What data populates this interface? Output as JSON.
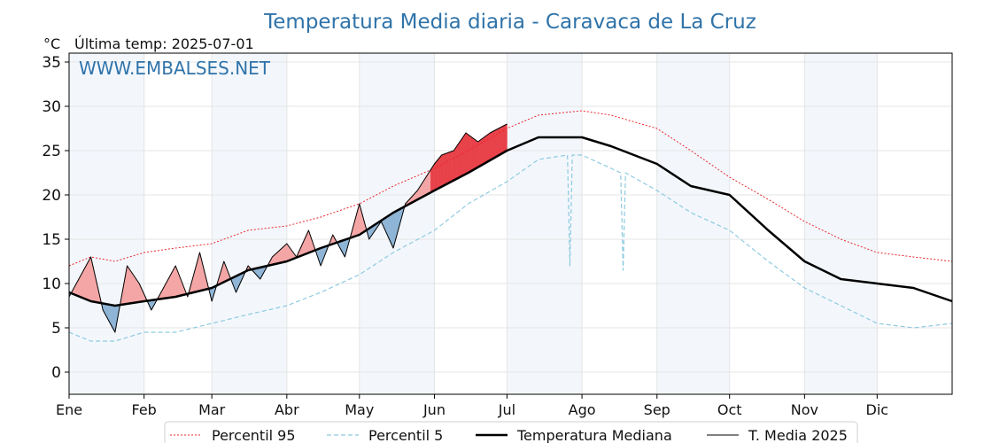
{
  "chart_data": {
    "type": "line",
    "title": "Temperatura Media diaria - Caravaca de La Cruz",
    "unit_label": "°C",
    "subtitle": "Última temp: 2025-07-01",
    "watermark": "WWW.EMBALSES.NET",
    "ylim": [
      -2.5,
      36
    ],
    "yticks": [
      0,
      5,
      10,
      15,
      20,
      25,
      30,
      35
    ],
    "xlim": [
      1,
      366
    ],
    "months": [
      "Ene",
      "Feb",
      "Mar",
      "Abr",
      "May",
      "Jun",
      "Jul",
      "Ago",
      "Sep",
      "Oct",
      "Nov",
      "Dic"
    ],
    "month_start_days": [
      1,
      32,
      60,
      91,
      121,
      152,
      182,
      213,
      244,
      274,
      305,
      335
    ],
    "grid": true,
    "legend_position": "bottom",
    "series": [
      {
        "name": "Percentil 95",
        "color": "#e8282d",
        "style": "dotted",
        "x": [
          1,
          10,
          20,
          32,
          45,
          60,
          75,
          91,
          105,
          121,
          135,
          152,
          166,
          182,
          195,
          213,
          225,
          244,
          258,
          274,
          290,
          305,
          320,
          335,
          350,
          366
        ],
        "values": [
          12.0,
          13.0,
          12.5,
          13.5,
          14.0,
          14.5,
          16.0,
          16.5,
          17.5,
          19.0,
          21.0,
          23.0,
          25.0,
          27.5,
          29.0,
          29.5,
          29.0,
          27.5,
          25.0,
          22.0,
          19.5,
          17.0,
          15.0,
          13.5,
          13.0,
          12.5
        ]
      },
      {
        "name": "Percentil 5",
        "color": "#8ecae0",
        "style": "dashed",
        "x": [
          1,
          10,
          20,
          32,
          45,
          60,
          75,
          91,
          105,
          121,
          135,
          152,
          166,
          182,
          195,
          207,
          208,
          209,
          213,
          225,
          229,
          230,
          231,
          244,
          258,
          274,
          290,
          305,
          320,
          335,
          350,
          366
        ],
        "values": [
          4.5,
          3.5,
          3.5,
          4.5,
          4.5,
          5.5,
          6.5,
          7.5,
          9.0,
          11.0,
          13.5,
          16.0,
          19.0,
          21.5,
          24.0,
          24.5,
          12.0,
          24.5,
          24.5,
          23.0,
          22.5,
          11.5,
          22.5,
          20.5,
          18.0,
          16.0,
          12.5,
          9.5,
          7.5,
          5.5,
          5.0,
          5.5
        ]
      },
      {
        "name": "Temperatura Mediana",
        "color": "#000000",
        "style": "solid-thick",
        "x": [
          1,
          10,
          20,
          32,
          45,
          60,
          75,
          91,
          105,
          121,
          135,
          152,
          166,
          182,
          195,
          213,
          225,
          244,
          258,
          274,
          290,
          305,
          320,
          335,
          350,
          366
        ],
        "values": [
          9.0,
          8.0,
          7.5,
          8.0,
          8.5,
          9.5,
          11.5,
          12.5,
          14.0,
          15.5,
          18.0,
          20.5,
          22.5,
          25.0,
          26.5,
          26.5,
          25.5,
          23.5,
          21.0,
          20.0,
          16.0,
          12.5,
          10.5,
          10.0,
          9.5,
          8.0
        ]
      },
      {
        "name": "T. Media 2025",
        "color": "#000000",
        "style": "solid-thin",
        "x": [
          1,
          5,
          10,
          15,
          20,
          25,
          30,
          35,
          40,
          45,
          50,
          55,
          60,
          65,
          70,
          75,
          80,
          85,
          91,
          95,
          100,
          105,
          110,
          115,
          121,
          125,
          130,
          135,
          140,
          145,
          152,
          155,
          160,
          165,
          170,
          175,
          182
        ],
        "values": [
          8.5,
          10.5,
          13.0,
          7.0,
          4.5,
          12.0,
          10.0,
          7.0,
          9.5,
          12.0,
          8.5,
          13.5,
          8.0,
          12.5,
          9.0,
          12.0,
          10.5,
          13.0,
          14.5,
          13.0,
          16.0,
          12.0,
          15.5,
          13.0,
          19.0,
          15.0,
          17.0,
          14.0,
          19.0,
          20.5,
          23.5,
          24.5,
          25.0,
          27.0,
          26.0,
          27.0,
          28.0
        ]
      }
    ],
    "fills": [
      {
        "between": [
          "T. Media 2025",
          "Temperatura Mediana"
        ],
        "above_color": "#f4a6a6",
        "below_color": "#8fb5d6",
        "extreme_above_color": "#e8424a",
        "extreme_below_color": "#1f5b9a"
      }
    ]
  }
}
